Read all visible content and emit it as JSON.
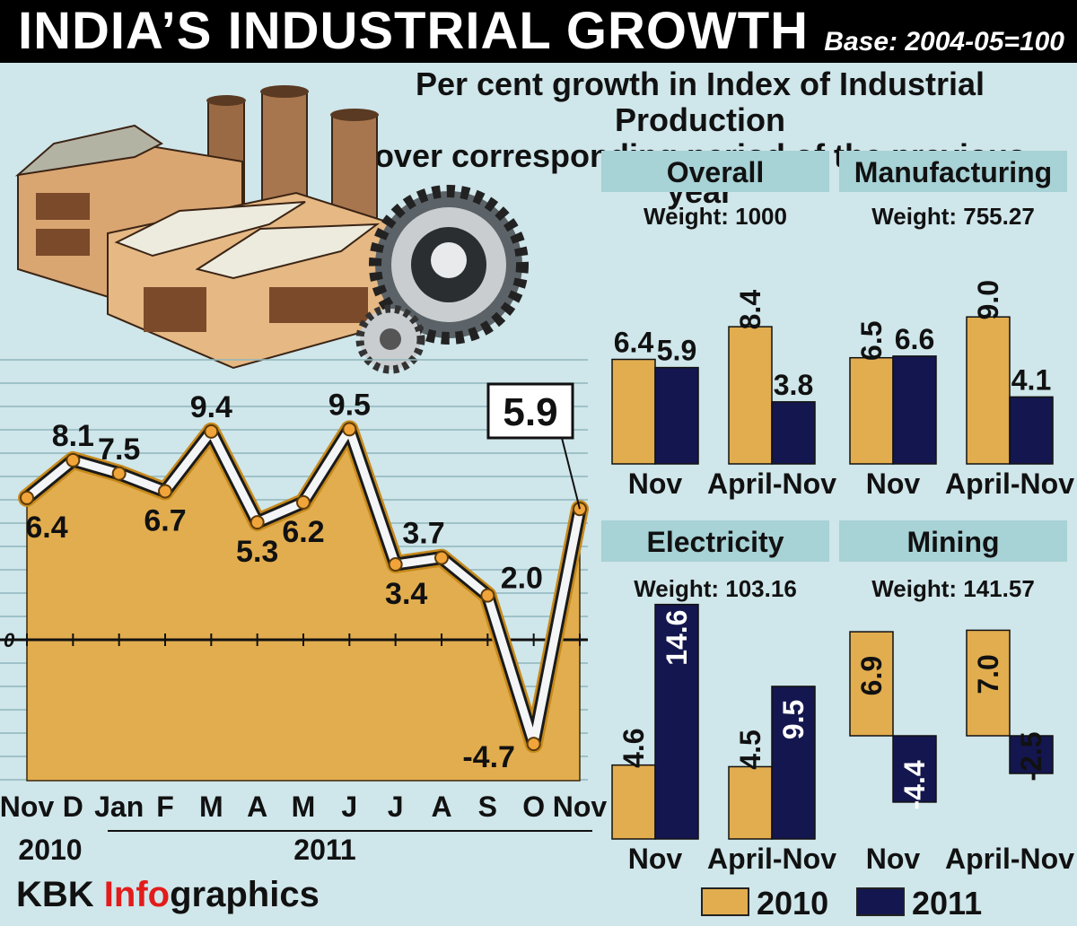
{
  "title": "INDIA’S INDUSTRIAL GROWTH",
  "base_note": "Base: 2004-05=100",
  "subtitle_line1": "Per cent growth in Index of Industrial Production",
  "subtitle_line2": "over corresponding period of the previous year",
  "credit_a": "KBK ",
  "credit_b": "Info",
  "credit_c": "graphics",
  "colors": {
    "c2010": "#e2ad4e",
    "c2011": "#14164f",
    "panel_header": "#a7d2d6",
    "background": "#cfe6ea"
  },
  "chart_data": [
    {
      "type": "area",
      "highlight_label": "5.9",
      "zero_label": "0",
      "x": [
        "Nov",
        "D",
        "Jan",
        "F",
        "M",
        "A",
        "M",
        "J",
        "J",
        "A",
        "S",
        "O",
        "Nov"
      ],
      "y": [
        6.4,
        8.1,
        7.5,
        6.7,
        9.4,
        5.3,
        6.2,
        9.5,
        3.4,
        3.7,
        2.0,
        -4.7,
        5.9
      ],
      "year_labels": [
        "2010",
        "2011"
      ],
      "ylim": [
        -6,
        13
      ],
      "grid": true
    },
    {
      "type": "bar",
      "title": "Overall",
      "weight": "Weight: 1000",
      "categories": [
        "Nov",
        "April-Nov"
      ],
      "series": [
        {
          "name": "2010",
          "values": [
            6.4,
            8.4
          ]
        },
        {
          "name": "2011",
          "values": [
            5.9,
            3.8
          ]
        }
      ]
    },
    {
      "type": "bar",
      "title": "Manufacturing",
      "weight": "Weight: 755.27",
      "categories": [
        "Nov",
        "April-Nov"
      ],
      "series": [
        {
          "name": "2010",
          "values": [
            6.5,
            9.0
          ]
        },
        {
          "name": "2011",
          "values": [
            6.6,
            4.1
          ]
        }
      ]
    },
    {
      "type": "bar",
      "title": "Electricity",
      "weight": "Weight: 103.16",
      "categories": [
        "Nov",
        "April-Nov"
      ],
      "series": [
        {
          "name": "2010",
          "values": [
            4.6,
            4.5
          ]
        },
        {
          "name": "2011",
          "values": [
            14.6,
            9.5
          ]
        }
      ]
    },
    {
      "type": "bar",
      "title": "Mining",
      "weight": "Weight: 141.57",
      "categories": [
        "Nov",
        "April-Nov"
      ],
      "series": [
        {
          "name": "2010",
          "values": [
            6.9,
            7.0
          ]
        },
        {
          "name": "2011",
          "values": [
            -4.4,
            -2.5
          ]
        }
      ]
    }
  ],
  "legend": [
    "2010",
    "2011"
  ]
}
